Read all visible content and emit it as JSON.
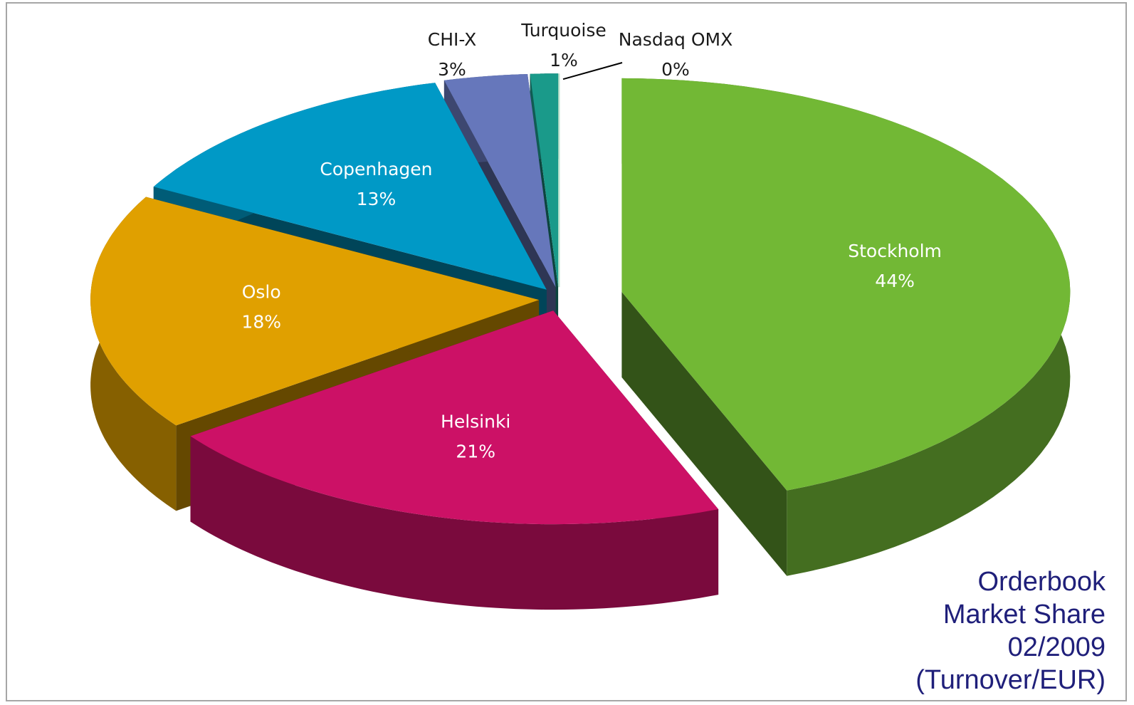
{
  "chart_data": {
    "type": "pie",
    "title": "Orderbook\nMarket Share\n02/2009\n(Turnover/EUR)",
    "categories": [
      "Stockholm",
      "Helsinki",
      "Oslo",
      "Copenhagen",
      "CHI-X",
      "Turquoise",
      "Nasdaq OMX"
    ],
    "values": [
      44,
      21,
      18,
      13,
      3,
      1,
      0
    ],
    "value_labels": [
      "44%",
      "21%",
      "18%",
      "13%",
      "3%",
      "1%",
      "0%"
    ],
    "colors": [
      "#72b835",
      "#cc1166",
      "#e0a000",
      "#0099c6",
      "#6677bb",
      "#1a9a8a",
      "#bfe3cf"
    ]
  }
}
